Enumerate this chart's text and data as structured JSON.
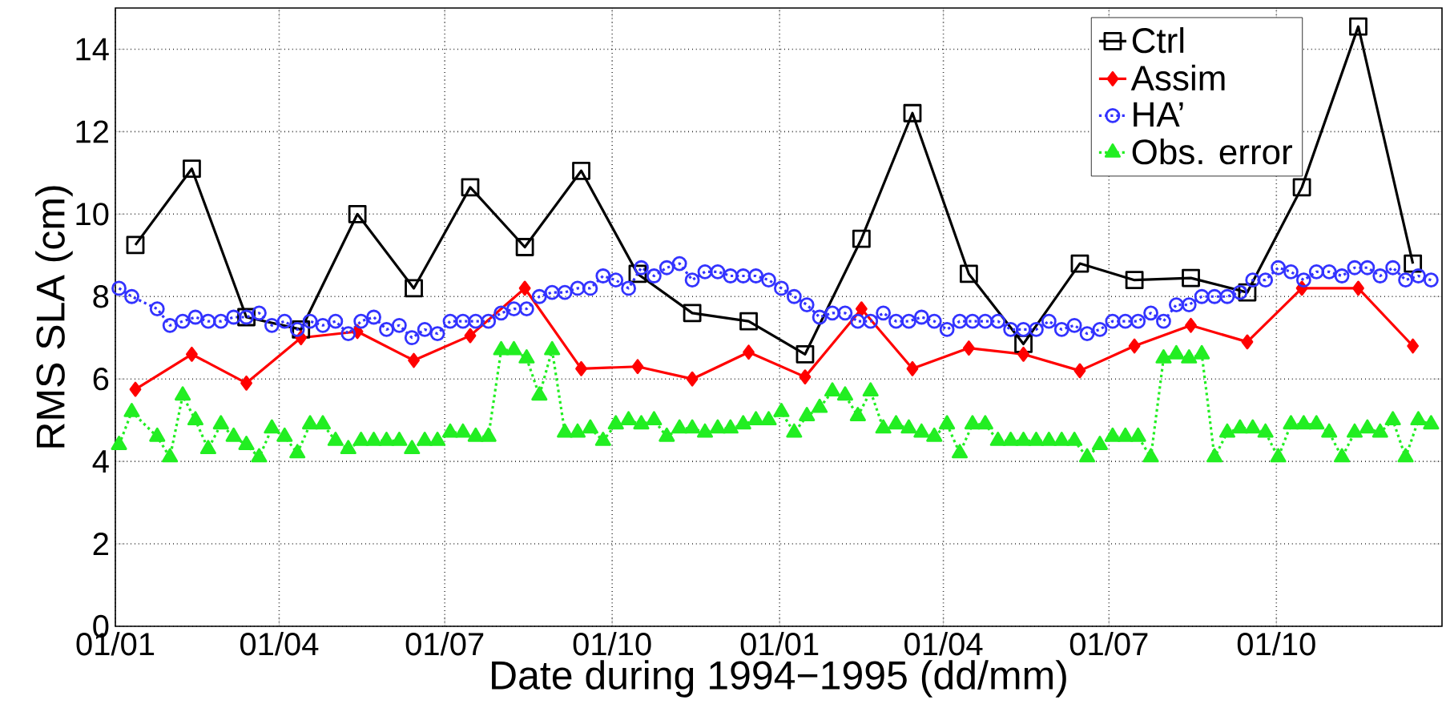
{
  "chart_data": {
    "type": "line",
    "xlabel": "Date during 1994−1995 (dd/mm)",
    "ylabel": "RMS SLA (cm)",
    "xlim": [
      "1994-01-01",
      "1995-12-31"
    ],
    "ylim": [
      0,
      15
    ],
    "xticks": [
      {
        "value": "1994-01-01",
        "label": "01/01"
      },
      {
        "value": "1994-04-01",
        "label": "01/04"
      },
      {
        "value": "1994-07-01",
        "label": "01/07"
      },
      {
        "value": "1994-10-01",
        "label": "01/10"
      },
      {
        "value": "1995-01-01",
        "label": "01/01"
      },
      {
        "value": "1995-04-01",
        "label": "01/04"
      },
      {
        "value": "1995-07-01",
        "label": "01/07"
      },
      {
        "value": "1995-10-01",
        "label": "01/10"
      }
    ],
    "yticks": [
      0,
      2,
      4,
      6,
      8,
      10,
      12,
      14
    ],
    "grid": true,
    "legend": "top right",
    "x": [
      "1994-01-03",
      "1994-01-10",
      "1994-01-24",
      "1994-01-31",
      "1994-02-07",
      "1994-02-14",
      "1994-02-21",
      "1994-02-28",
      "1994-03-07",
      "1994-03-14",
      "1994-03-21",
      "1994-03-28",
      "1994-04-04",
      "1994-04-11",
      "1994-04-18",
      "1994-04-25",
      "1994-05-02",
      "1994-05-09",
      "1994-05-16",
      "1994-05-23",
      "1994-05-30",
      "1994-06-06",
      "1994-06-13",
      "1994-06-20",
      "1994-06-27",
      "1994-07-04",
      "1994-07-11",
      "1994-07-18",
      "1994-07-25",
      "1994-08-01",
      "1994-08-08",
      "1994-08-15",
      "1994-08-22",
      "1994-08-29",
      "1994-09-05",
      "1994-09-12",
      "1994-09-19",
      "1994-09-26",
      "1994-10-03",
      "1994-10-10",
      "1994-10-17",
      "1994-10-24",
      "1994-10-31",
      "1994-11-07",
      "1994-11-14",
      "1994-11-21",
      "1994-11-28",
      "1994-12-05",
      "1994-12-12",
      "1994-12-19",
      "1994-12-26",
      "1995-01-02",
      "1995-01-09",
      "1995-01-16",
      "1995-01-23",
      "1995-01-30",
      "1995-02-06",
      "1995-02-13",
      "1995-02-20",
      "1995-02-27",
      "1995-03-06",
      "1995-03-13",
      "1995-03-20",
      "1995-03-27",
      "1995-04-03",
      "1995-04-10",
      "1995-04-17",
      "1995-04-24",
      "1995-05-01",
      "1995-05-08",
      "1995-05-15",
      "1995-05-22",
      "1995-05-29",
      "1995-06-05",
      "1995-06-12",
      "1995-06-19",
      "1995-06-26",
      "1995-07-03",
      "1995-07-10",
      "1995-07-17",
      "1995-07-24",
      "1995-07-31",
      "1995-08-07",
      "1995-08-14",
      "1995-08-21",
      "1995-08-28",
      "1995-09-04",
      "1995-09-11",
      "1995-09-18",
      "1995-09-25",
      "1995-10-02",
      "1995-10-09",
      "1995-10-16",
      "1995-10-23",
      "1995-10-30",
      "1995-11-06",
      "1995-11-13",
      "1995-11-20",
      "1995-11-27",
      "1995-12-04",
      "1995-12-11",
      "1995-12-18",
      "1995-12-25"
    ],
    "series": [
      {
        "name": "Ctrl",
        "color": "#000000",
        "marker": "square",
        "line_style": "solid",
        "x": [
          "1994-01-12",
          "1994-02-12",
          "1994-03-14",
          "1994-04-13",
          "1994-05-14",
          "1994-06-14",
          "1994-07-15",
          "1994-08-14",
          "1994-09-14",
          "1994-10-15",
          "1994-11-14",
          "1994-12-15",
          "1995-01-15",
          "1995-02-15",
          "1995-03-15",
          "1995-04-15",
          "1995-05-15",
          "1995-06-15",
          "1995-07-15",
          "1995-08-15",
          "1995-09-15",
          "1995-10-15",
          "1995-11-15",
          "1995-12-15"
        ],
        "values": [
          9.25,
          11.1,
          7.5,
          7.2,
          10.0,
          8.2,
          10.65,
          9.2,
          11.05,
          8.55,
          7.6,
          7.4,
          6.6,
          9.4,
          12.45,
          8.55,
          6.85,
          8.8,
          8.4,
          8.45,
          8.1,
          10.65,
          14.55,
          8.8
        ]
      },
      {
        "name": "Assim",
        "color": "#ff0000",
        "marker": "diamond",
        "line_style": "solid",
        "x": [
          "1994-01-12",
          "1994-02-12",
          "1994-03-14",
          "1994-04-13",
          "1994-05-14",
          "1994-06-14",
          "1994-07-15",
          "1994-08-14",
          "1994-09-14",
          "1994-10-15",
          "1994-11-14",
          "1994-12-15",
          "1995-01-15",
          "1995-02-15",
          "1995-03-15",
          "1995-04-15",
          "1995-05-15",
          "1995-06-15",
          "1995-07-15",
          "1995-08-15",
          "1995-09-15",
          "1995-10-15",
          "1995-11-15",
          "1995-12-15"
        ],
        "values": [
          5.75,
          6.6,
          5.9,
          7.0,
          7.15,
          6.45,
          7.05,
          8.2,
          6.25,
          6.3,
          6.0,
          6.65,
          6.05,
          7.7,
          6.25,
          6.75,
          6.6,
          6.2,
          6.8,
          7.3,
          6.9,
          8.2,
          8.2,
          6.8
        ]
      },
      {
        "name": "HA’",
        "color": "#3333ff",
        "marker": "circle",
        "line_style": "dotted",
        "values": [
          8.2,
          8.0,
          7.7,
          7.3,
          7.4,
          7.5,
          7.4,
          7.4,
          7.5,
          7.5,
          7.6,
          7.3,
          7.4,
          7.2,
          7.4,
          7.3,
          7.4,
          7.1,
          7.4,
          7.5,
          7.2,
          7.3,
          7.0,
          7.2,
          7.1,
          7.4,
          7.4,
          7.4,
          7.4,
          7.6,
          7.7,
          7.7,
          8.0,
          8.1,
          8.1,
          8.2,
          8.2,
          8.5,
          8.4,
          8.2,
          8.7,
          8.5,
          8.7,
          8.8,
          8.4,
          8.6,
          8.6,
          8.5,
          8.5,
          8.5,
          8.4,
          8.2,
          8.0,
          7.8,
          7.5,
          7.6,
          7.6,
          7.4,
          7.4,
          7.6,
          7.4,
          7.4,
          7.5,
          7.4,
          7.2,
          7.4,
          7.4,
          7.4,
          7.4,
          7.2,
          7.2,
          7.2,
          7.4,
          7.2,
          7.3,
          7.1,
          7.2,
          7.4,
          7.4,
          7.4,
          7.6,
          7.4,
          7.8,
          7.8,
          8.0,
          8.0,
          8.0,
          8.1,
          8.4,
          8.4,
          8.7,
          8.6,
          8.4,
          8.6,
          8.6,
          8.5,
          8.7,
          8.7,
          8.5,
          8.7,
          8.4,
          8.5,
          8.4
        ]
      },
      {
        "name": "Obs. error",
        "color": "#22ee22",
        "marker": "triangle",
        "line_style": "dotted",
        "values": [
          4.4,
          5.2,
          4.6,
          4.1,
          5.6,
          5.0,
          4.3,
          4.9,
          4.6,
          4.4,
          4.1,
          4.8,
          4.6,
          4.2,
          4.9,
          4.9,
          4.5,
          4.3,
          4.5,
          4.5,
          4.5,
          4.5,
          4.3,
          4.5,
          4.5,
          4.7,
          4.7,
          4.6,
          4.6,
          6.7,
          6.7,
          6.5,
          5.6,
          6.7,
          4.7,
          4.7,
          4.8,
          4.5,
          4.9,
          5.0,
          4.9,
          5.0,
          4.6,
          4.8,
          4.8,
          4.7,
          4.8,
          4.8,
          4.9,
          5.0,
          5.0,
          5.2,
          4.7,
          5.1,
          5.3,
          5.7,
          5.6,
          5.1,
          5.7,
          4.8,
          4.9,
          4.8,
          4.7,
          4.6,
          4.9,
          4.2,
          4.9,
          4.9,
          4.5,
          4.5,
          4.5,
          4.5,
          4.5,
          4.5,
          4.5,
          4.1,
          4.4,
          4.6,
          4.6,
          4.6,
          4.1,
          6.5,
          6.6,
          6.5,
          6.6,
          4.1,
          4.7,
          4.8,
          4.8,
          4.7,
          4.1,
          4.9,
          4.9,
          4.9,
          4.7,
          4.1,
          4.7,
          4.8,
          4.7,
          5.0,
          4.1,
          5.0,
          4.9
        ]
      }
    ]
  }
}
